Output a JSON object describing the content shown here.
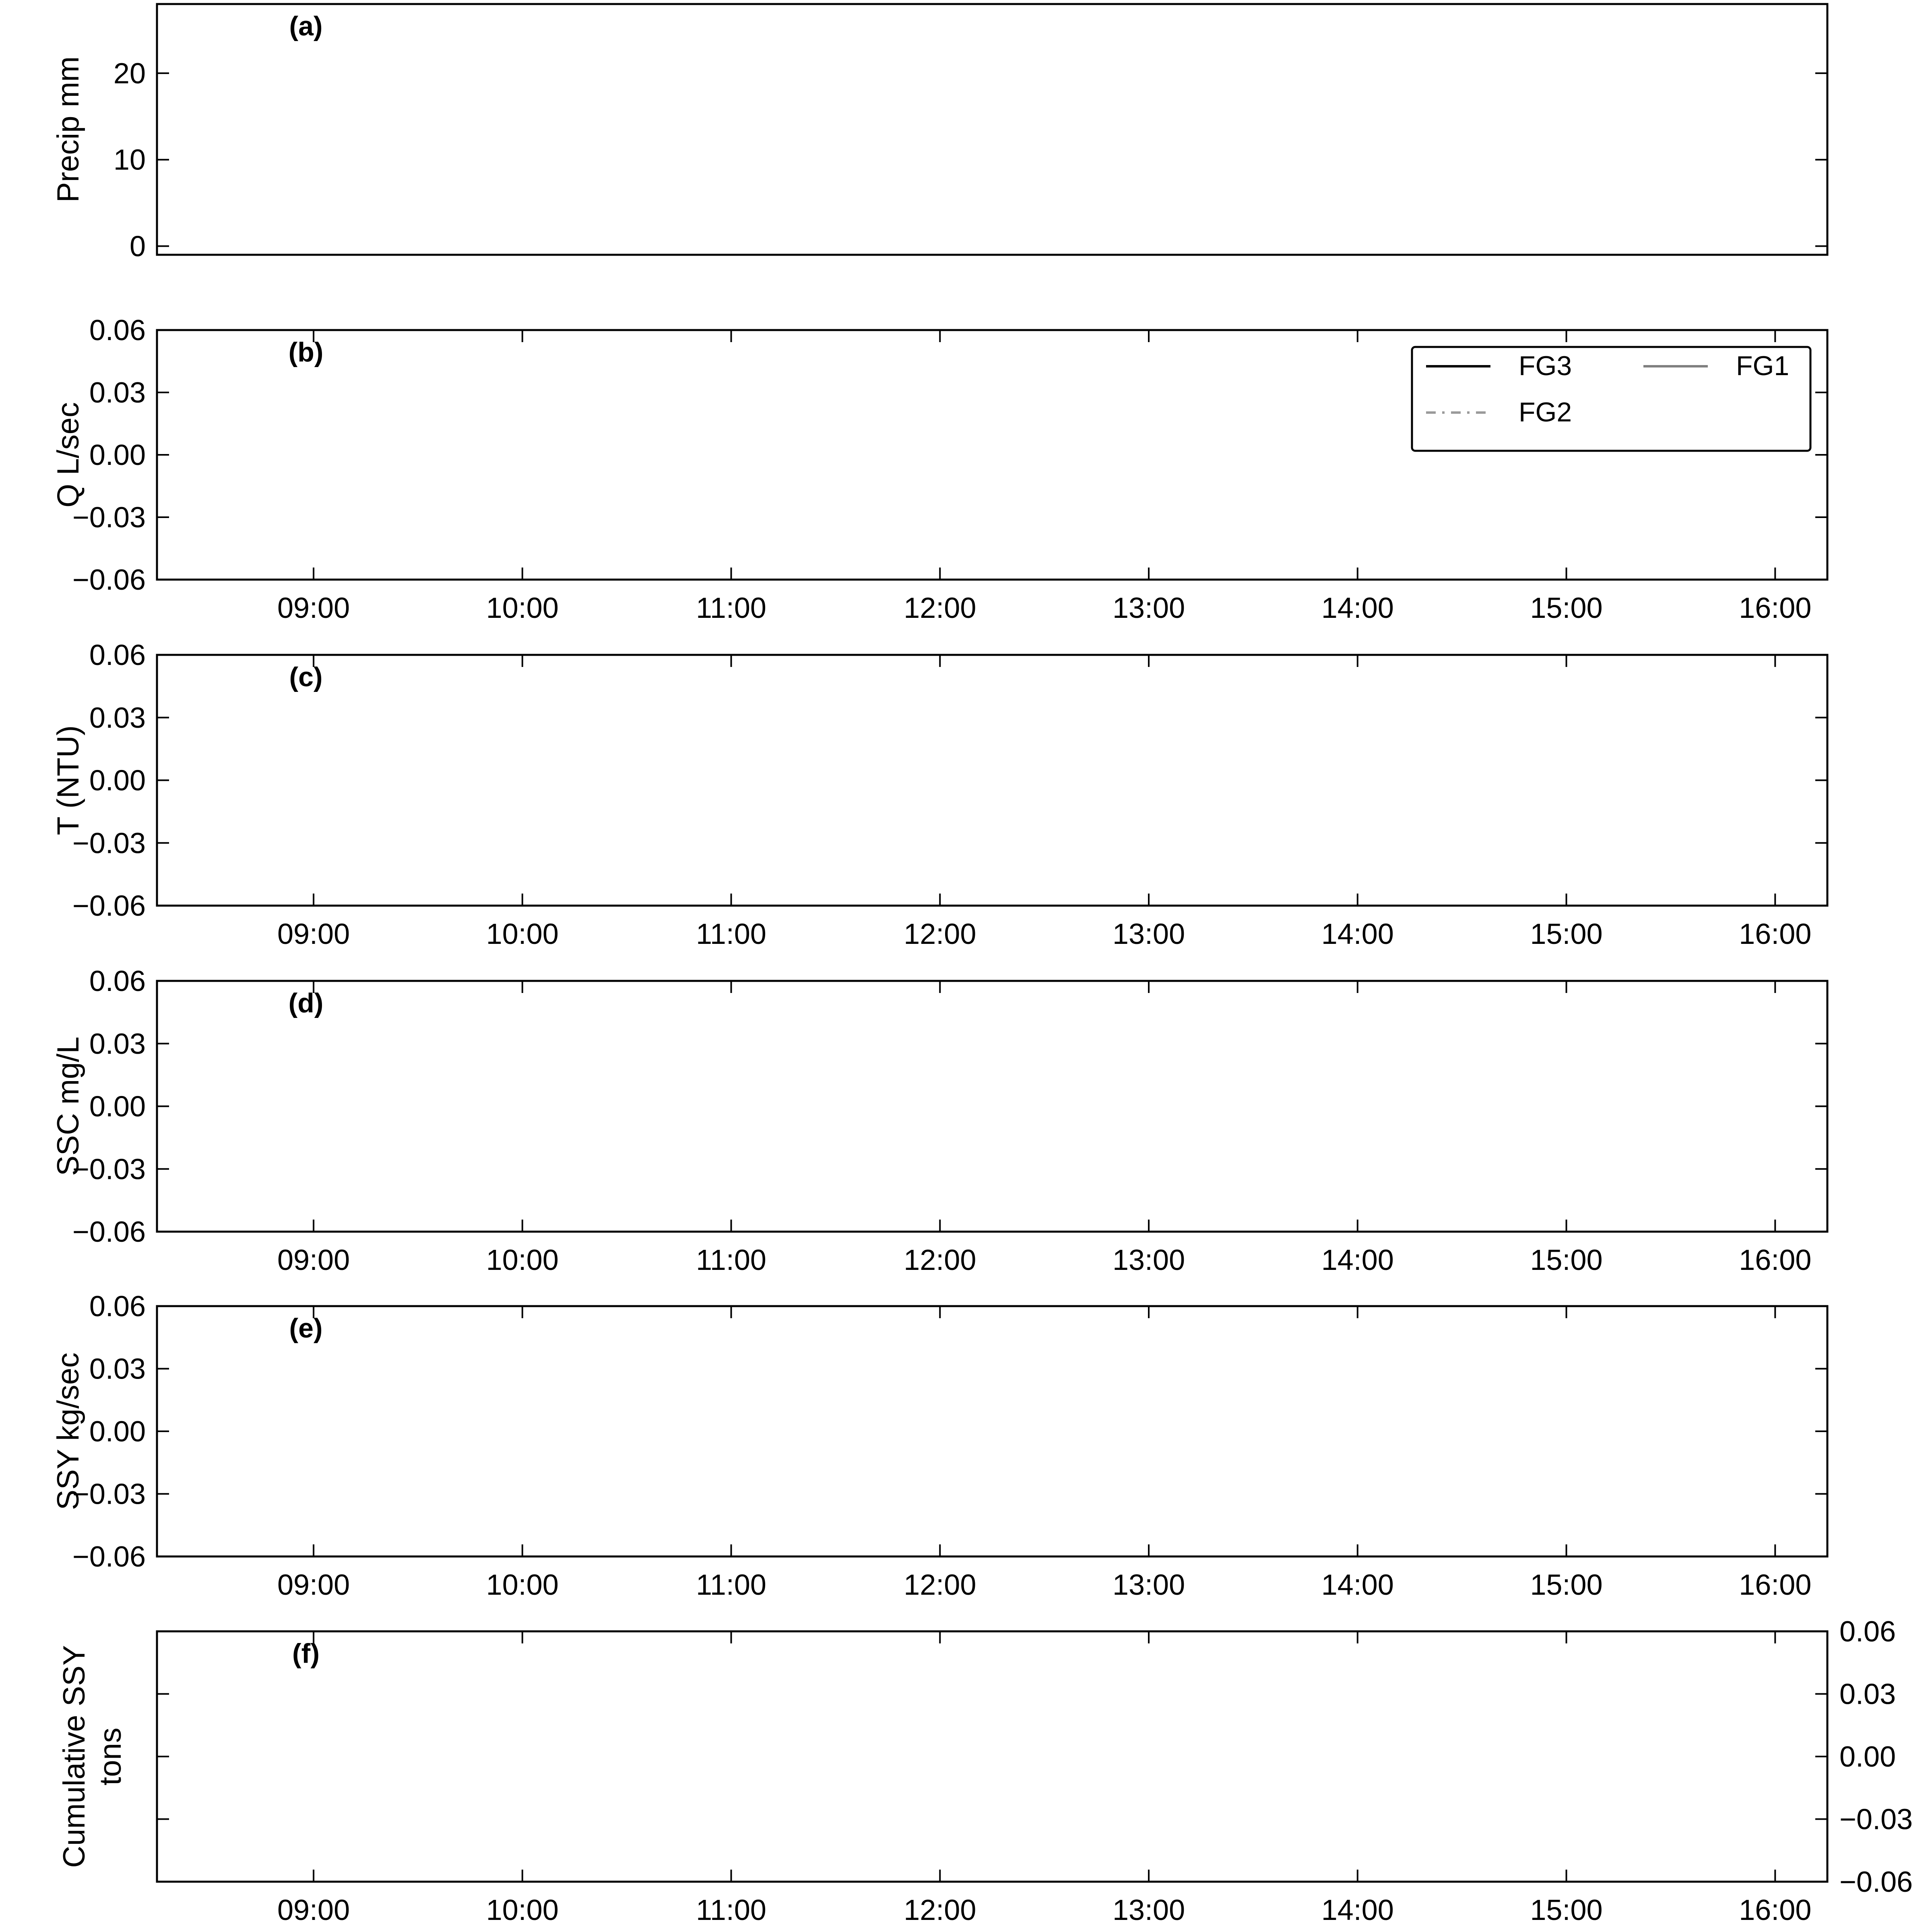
{
  "chart_data": [
    {
      "panel": "(a)",
      "type": "bar",
      "ylabel": "Precip mm",
      "yticks": [
        0,
        10,
        20
      ],
      "ytick_labels": [
        "0",
        "10",
        "20"
      ],
      "ylim": [
        -1,
        28
      ],
      "xlim": [
        "08:15",
        "16:15"
      ],
      "xticks": [],
      "grid": false,
      "series": []
    },
    {
      "panel": "(b)",
      "type": "line",
      "ylabel": "Q L/sec",
      "yticks": [
        -0.06,
        -0.03,
        0.0,
        0.03,
        0.06
      ],
      "ytick_labels": [
        "−0.06",
        "−0.03",
        "0.00",
        "0.03",
        "0.06"
      ],
      "ylim": [
        -0.06,
        0.06
      ],
      "xlim": [
        "08:15",
        "16:15"
      ],
      "xticks": [
        "09:00",
        "10:00",
        "11:00",
        "12:00",
        "13:00",
        "14:00",
        "15:00",
        "16:00"
      ],
      "grid": false,
      "legend": {
        "placement": "top-right",
        "entries": [
          {
            "name": "FG3",
            "color": "#000000",
            "style": "solid"
          },
          {
            "name": "FG1",
            "color": "#808080",
            "style": "solid"
          },
          {
            "name": "FG2",
            "color": "#9a9a9a",
            "style": "dashdot"
          }
        ]
      },
      "series": [
        {
          "name": "FG3",
          "x": [],
          "y": []
        },
        {
          "name": "FG1",
          "x": [],
          "y": []
        },
        {
          "name": "FG2",
          "x": [],
          "y": []
        }
      ]
    },
    {
      "panel": "(c)",
      "type": "line",
      "ylabel": "T (NTU)",
      "yticks": [
        -0.06,
        -0.03,
        0.0,
        0.03,
        0.06
      ],
      "ytick_labels": [
        "−0.06",
        "−0.03",
        "0.00",
        "0.03",
        "0.06"
      ],
      "ylim": [
        -0.06,
        0.06
      ],
      "xlim": [
        "08:15",
        "16:15"
      ],
      "xticks": [
        "09:00",
        "10:00",
        "11:00",
        "12:00",
        "13:00",
        "14:00",
        "15:00",
        "16:00"
      ],
      "grid": false,
      "series": []
    },
    {
      "panel": "(d)",
      "type": "line",
      "ylabel": "SSC mg/L",
      "yticks": [
        -0.06,
        -0.03,
        0.0,
        0.03,
        0.06
      ],
      "ytick_labels": [
        "−0.06",
        "−0.03",
        "0.00",
        "0.03",
        "0.06"
      ],
      "ylim": [
        -0.06,
        0.06
      ],
      "xlim": [
        "08:15",
        "16:15"
      ],
      "xticks": [
        "09:00",
        "10:00",
        "11:00",
        "12:00",
        "13:00",
        "14:00",
        "15:00",
        "16:00"
      ],
      "grid": false,
      "series": []
    },
    {
      "panel": "(e)",
      "type": "line",
      "ylabel": "SSY kg/sec",
      "yticks": [
        -0.06,
        -0.03,
        0.0,
        0.03,
        0.06
      ],
      "ytick_labels": [
        "−0.06",
        "−0.03",
        "0.00",
        "0.03",
        "0.06"
      ],
      "ylim": [
        -0.06,
        0.06
      ],
      "xlim": [
        "08:15",
        "16:15"
      ],
      "xticks": [
        "09:00",
        "10:00",
        "11:00",
        "12:00",
        "13:00",
        "14:00",
        "15:00",
        "16:00"
      ],
      "grid": false,
      "series": []
    },
    {
      "panel": "(f)",
      "type": "line",
      "ylabel": [
        "Cumulative SSY",
        "tons"
      ],
      "yaxis_side": "right",
      "yticks": [
        -0.06,
        -0.03,
        0.0,
        0.03,
        0.06
      ],
      "ytick_labels": [
        "−0.06",
        "−0.03",
        "0.00",
        "0.03",
        "0.06"
      ],
      "ylim": [
        -0.06,
        0.06
      ],
      "xlim": [
        "08:15",
        "16:15"
      ],
      "xticks": [
        "09:00",
        "10:00",
        "11:00",
        "12:00",
        "13:00",
        "14:00",
        "15:00",
        "16:00"
      ],
      "grid": false,
      "series": []
    }
  ]
}
